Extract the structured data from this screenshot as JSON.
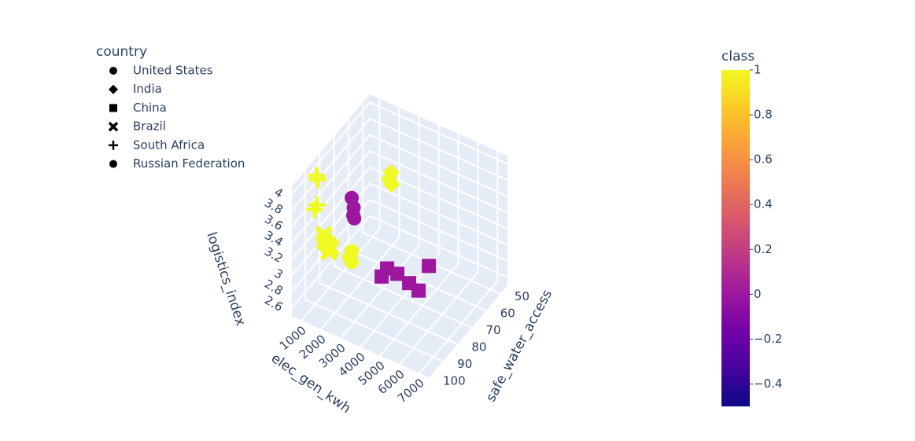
{
  "chart_data": {
    "type": "scatter3d",
    "legend_title": "country",
    "xlabel": "elec_gen_kwh",
    "ylabel": "safe_water_access",
    "zlabel": "logistics_index",
    "xlim": [
      500,
      7500
    ],
    "xticks": [
      1000,
      2000,
      3000,
      4000,
      5000,
      6000,
      7000
    ],
    "ylim": [
      45,
      100
    ],
    "yticks": [
      50,
      60,
      70,
      80,
      90,
      100
    ],
    "zlim": [
      2.5,
      4.1
    ],
    "zticks": [
      2.6,
      2.8,
      3,
      3.2,
      3.4,
      3.6,
      3.8,
      4
    ],
    "colorbar": {
      "title": "class",
      "clim": [
        -0.5,
        1
      ],
      "ticks": [
        {
          "value": -0.4,
          "label": "−0.4"
        },
        {
          "value": -0.2,
          "label": "−0.2"
        },
        0,
        0.2,
        0.4,
        0.6,
        0.8,
        1
      ],
      "colorscale": [
        "#0d0887",
        "#46039f",
        "#7201a8",
        "#9c179e",
        "#bd3786",
        "#d8576b",
        "#ed7953",
        "#fb9f3a",
        "#fdca26",
        "#f0f921"
      ]
    },
    "series": [
      {
        "name": "United States",
        "symbol": "circle",
        "x": [
          1400,
          1500,
          1550,
          1600
        ],
        "y": [
          70,
          70,
          71,
          71
        ],
        "z": [
          3.44,
          3.33,
          3.26,
          3.23
        ],
        "class": [
          0,
          0,
          0,
          0
        ]
      },
      {
        "name": "India",
        "symbol": "diamond",
        "x": [
          2670,
          2650,
          2700
        ],
        "y": [
          60,
          61,
          60
        ],
        "z": [
          3.68,
          3.62,
          3.54
        ],
        "class": [
          1,
          1,
          1
        ]
      },
      {
        "name": "China",
        "symbol": "square",
        "x": [
          4230,
          4510,
          5030,
          5630,
          6110,
          6630
        ],
        "y": [
          88,
          88,
          88,
          88,
          88,
          88
        ],
        "z": [
          3.15,
          3.28,
          3.27,
          3.22,
          3.18,
          3.54
        ],
        "class": [
          0,
          0,
          0,
          0,
          0,
          0
        ]
      },
      {
        "name": "Brazil",
        "symbol": "x",
        "x": [
          2000,
          1900,
          2100,
          2200,
          1800
        ],
        "y": [
          95,
          96,
          94,
          97,
          95
        ],
        "z": [
          3.45,
          3.5,
          3.4,
          3.42,
          3.55
        ],
        "class": [
          1,
          1,
          1,
          1,
          1
        ]
      },
      {
        "name": "South Africa",
        "symbol": "cross",
        "x": [
          700,
          700,
          800,
          750
        ],
        "y": [
          85,
          84,
          86,
          87
        ],
        "z": [
          3.95,
          3.88,
          3.62,
          3.58
        ],
        "class": [
          1,
          1,
          1,
          1
        ]
      },
      {
        "name": "Russian Federation",
        "symbol": "circle",
        "x": [
          1400,
          1400,
          1350
        ],
        "y": [
          70,
          70,
          71
        ],
        "z": [
          2.78,
          2.65,
          2.72
        ],
        "class": [
          1,
          1,
          1
        ]
      }
    ]
  }
}
